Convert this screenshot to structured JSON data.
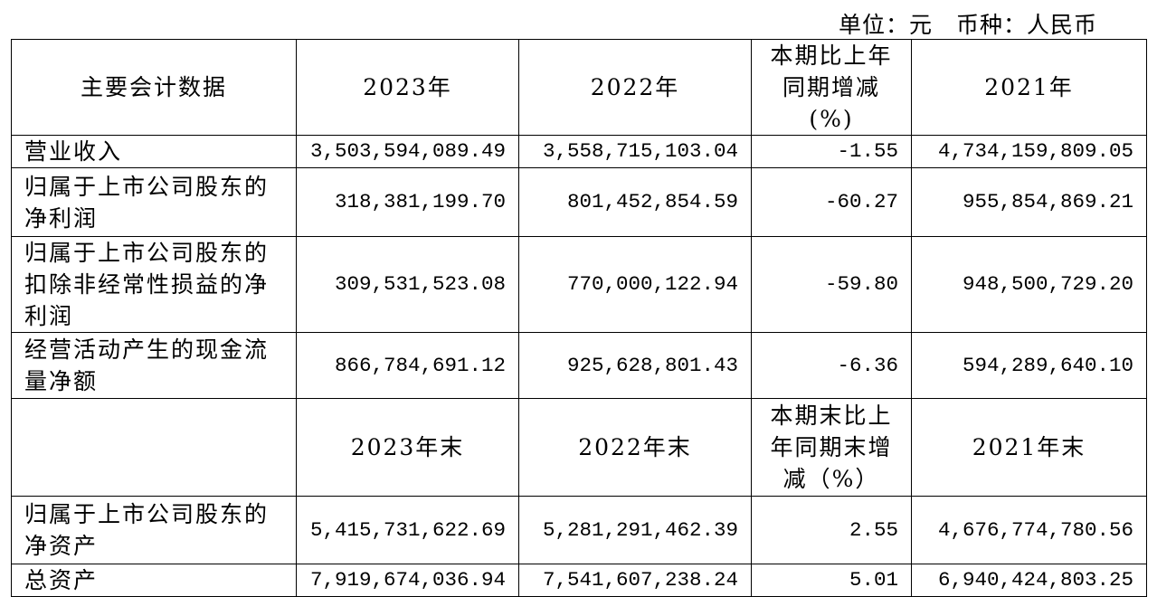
{
  "unit_note": "单位：元　币种：人民币",
  "table": {
    "header1": [
      "主要会计数据",
      "2023年",
      "2022年",
      "本期比上年同期增减(%)",
      "2021年"
    ],
    "rows1": [
      [
        "营业收入",
        "3,503,594,089.49",
        "3,558,715,103.04",
        "-1.55",
        "4,734,159,809.05"
      ],
      [
        "归属于上市公司股东的净利润",
        "318,381,199.70",
        "801,452,854.59",
        "-60.27",
        "955,854,869.21"
      ],
      [
        "归属于上市公司股东的扣除非经常性损益的净利润",
        "309,531,523.08",
        "770,000,122.94",
        "-59.80",
        "948,500,729.20"
      ],
      [
        "经营活动产生的现金流量净额",
        "866,784,691.12",
        "925,628,801.43",
        "-6.36",
        "594,289,640.10"
      ]
    ],
    "header2": [
      null,
      "2023年末",
      "2022年末",
      "本期末比上年同期末增减（%）",
      "2021年末"
    ],
    "rows2": [
      [
        "归属于上市公司股东的净资产",
        "5,415,731,622.69",
        "5,281,291,462.39",
        "2.55",
        "4,676,774,780.56"
      ],
      [
        "总资产",
        "7,919,674,036.94",
        "7,541,607,238.24",
        "5.01",
        "6,940,424,803.25"
      ]
    ]
  }
}
